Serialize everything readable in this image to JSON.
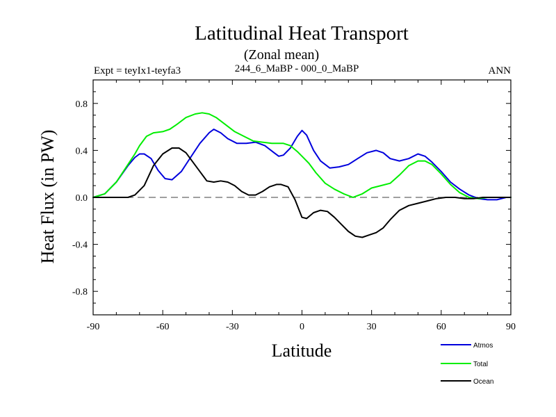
{
  "chart_data": {
    "type": "line",
    "title": "Latitudinal Heat Transport",
    "subtitle": "(Zonal mean)",
    "left_label": "Expt = teyIx1-teyfa3",
    "center_label": "244_6_MaBP - 000_0_MaBP",
    "right_label": "ANN",
    "xlabel": "Latitude",
    "ylabel": "Heat Flux (in PW)",
    "xlim": [
      -90,
      90
    ],
    "ylim": [
      -1.0,
      1.0
    ],
    "xticks": [
      -90,
      -60,
      -30,
      0,
      30,
      60,
      90
    ],
    "xtick_labels": [
      "-90",
      "-60",
      "-30",
      "0",
      "30",
      "60",
      "90"
    ],
    "yticks": [
      -0.8,
      -0.4,
      0.0,
      0.4,
      0.8
    ],
    "ytick_labels": [
      "-0.8",
      "-0.4",
      "0.0",
      "0.4",
      "0.8"
    ],
    "zero_line": true,
    "series": [
      {
        "name": "Atmos",
        "color": "#0000dd",
        "x": [
          -90,
          -85,
          -80,
          -75,
          -72,
          -70,
          -68,
          -65,
          -62,
          -59,
          -56,
          -52,
          -48,
          -44,
          -40,
          -38,
          -35,
          -32,
          -28,
          -24,
          -20,
          -16,
          -12,
          -10,
          -8,
          -5,
          -2,
          0,
          2,
          5,
          8,
          12,
          16,
          20,
          24,
          28,
          32,
          35,
          38,
          42,
          46,
          50,
          53,
          56,
          60,
          64,
          68,
          72,
          76,
          80,
          84,
          88,
          90
        ],
        "y": [
          0.0,
          0.03,
          0.13,
          0.27,
          0.34,
          0.37,
          0.37,
          0.33,
          0.23,
          0.16,
          0.15,
          0.22,
          0.34,
          0.46,
          0.55,
          0.58,
          0.55,
          0.5,
          0.46,
          0.46,
          0.47,
          0.44,
          0.38,
          0.35,
          0.36,
          0.42,
          0.52,
          0.57,
          0.53,
          0.4,
          0.31,
          0.25,
          0.26,
          0.28,
          0.33,
          0.38,
          0.4,
          0.38,
          0.33,
          0.31,
          0.33,
          0.37,
          0.35,
          0.3,
          0.22,
          0.13,
          0.07,
          0.02,
          -0.01,
          -0.02,
          -0.02,
          0.0,
          0.0
        ]
      },
      {
        "name": "Total",
        "color": "#00ee00",
        "x": [
          -90,
          -85,
          -80,
          -75,
          -72,
          -70,
          -67,
          -64,
          -60,
          -57,
          -54,
          -50,
          -46,
          -43,
          -40,
          -37,
          -33,
          -29,
          -25,
          -21,
          -17,
          -13,
          -10,
          -8,
          -5,
          -2,
          0,
          3,
          6,
          10,
          14,
          18,
          22,
          26,
          30,
          34,
          38,
          42,
          46,
          50,
          53,
          56,
          60,
          64,
          68,
          72,
          76,
          80,
          84,
          88,
          90
        ],
        "y": [
          0.0,
          0.03,
          0.13,
          0.28,
          0.37,
          0.44,
          0.52,
          0.55,
          0.56,
          0.58,
          0.62,
          0.68,
          0.71,
          0.72,
          0.71,
          0.68,
          0.62,
          0.56,
          0.52,
          0.48,
          0.47,
          0.46,
          0.46,
          0.46,
          0.44,
          0.39,
          0.35,
          0.29,
          0.21,
          0.12,
          0.07,
          0.03,
          0.0,
          0.03,
          0.08,
          0.1,
          0.12,
          0.19,
          0.27,
          0.31,
          0.31,
          0.28,
          0.2,
          0.11,
          0.04,
          0.0,
          -0.01,
          0.0,
          0.0,
          0.0,
          0.0
        ]
      },
      {
        "name": "Ocean",
        "color": "#000000",
        "x": [
          -90,
          -85,
          -80,
          -75,
          -72,
          -68,
          -64,
          -60,
          -56,
          -53,
          -50,
          -47,
          -44,
          -41,
          -38,
          -35,
          -32,
          -29,
          -26,
          -23,
          -20,
          -17,
          -14,
          -11,
          -9,
          -6,
          -3,
          0,
          2,
          5,
          8,
          11,
          14,
          17,
          20,
          23,
          26,
          29,
          32,
          35,
          38,
          42,
          46,
          50,
          54,
          58,
          62,
          66,
          70,
          74,
          78,
          82,
          86,
          90
        ],
        "y": [
          0.0,
          0.0,
          0.0,
          0.0,
          0.02,
          0.1,
          0.27,
          0.37,
          0.42,
          0.42,
          0.38,
          0.3,
          0.22,
          0.14,
          0.13,
          0.14,
          0.13,
          0.1,
          0.05,
          0.02,
          0.02,
          0.05,
          0.09,
          0.11,
          0.11,
          0.09,
          -0.02,
          -0.17,
          -0.18,
          -0.13,
          -0.11,
          -0.12,
          -0.17,
          -0.23,
          -0.29,
          -0.33,
          -0.34,
          -0.32,
          -0.3,
          -0.26,
          -0.19,
          -0.11,
          -0.07,
          -0.05,
          -0.03,
          -0.01,
          0.0,
          0.0,
          -0.01,
          -0.01,
          0.0,
          0.0,
          0.0,
          0.0
        ]
      }
    ]
  }
}
